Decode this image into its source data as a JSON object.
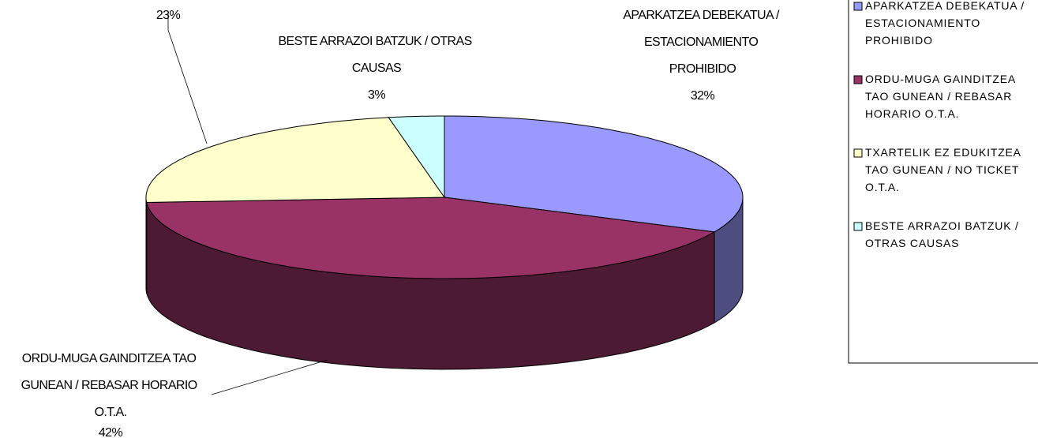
{
  "chart_data": {
    "type": "pie3d",
    "categories": [
      "APARKATZEA DEBEKATUA / ESTACIONAMIENTO PROHIBIDO",
      "ORDU-MUGA GAINDITZEA TAO GUNEAN / REBASAR HORARIO O.T.A.",
      "TXARTELIK EZ EDUKITZEA TAO GUNEAN / NO TICKET O.T.A.",
      "BESTE ARRAZOI BATZUK / OTRAS CAUSAS"
    ],
    "values": [
      32,
      42,
      23,
      3
    ],
    "value_labels": [
      "32%",
      "42%",
      "23%",
      "3%"
    ],
    "colors": [
      "#9999ff",
      "#993366",
      "#ffffcc",
      "#ccffff"
    ],
    "side_colors": [
      "#4d4d80",
      "#4d1a33",
      "#808066",
      "#668080"
    ],
    "legend": "right"
  }
}
